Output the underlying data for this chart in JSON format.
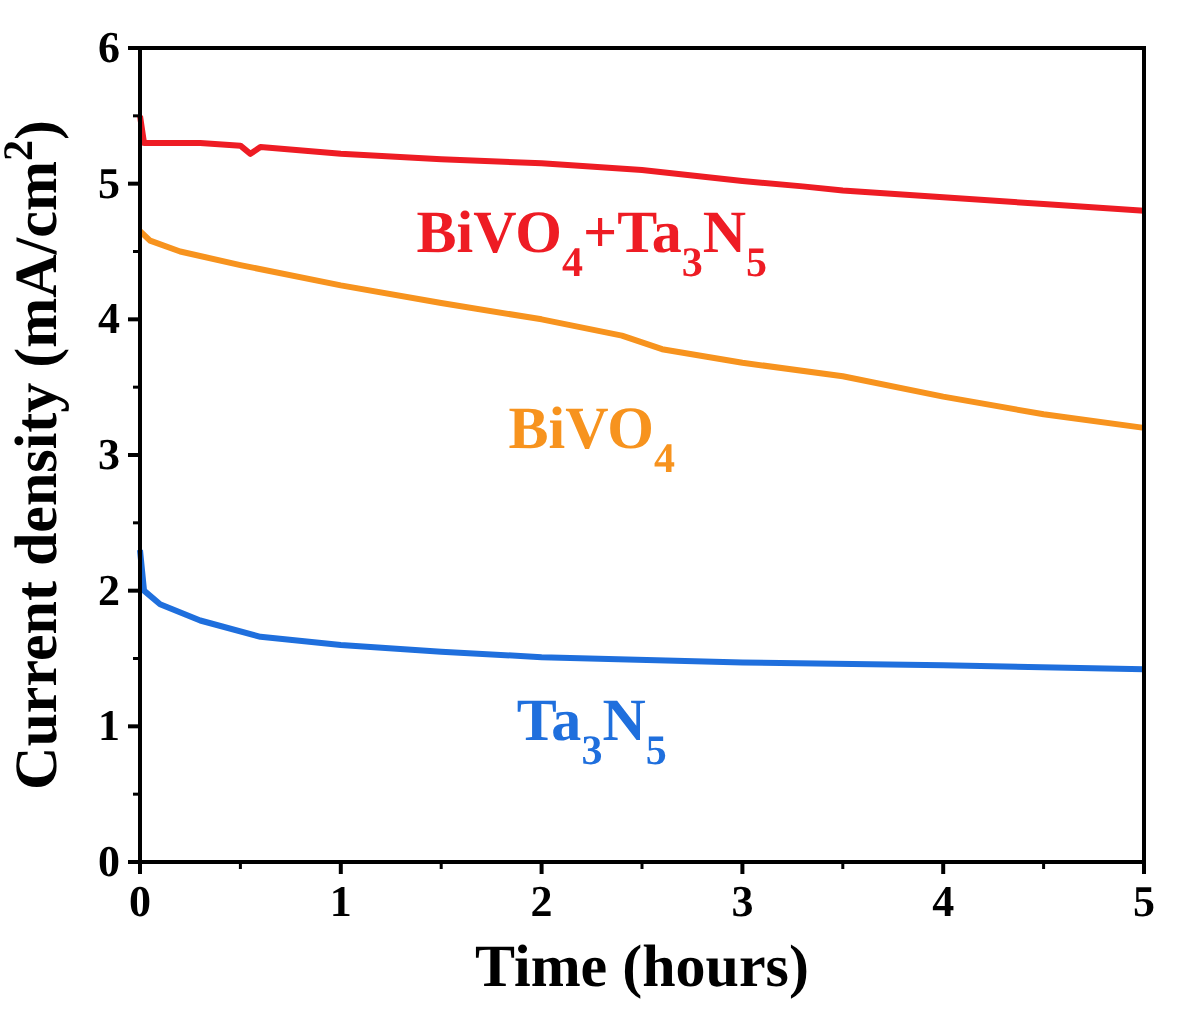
{
  "chart_data": {
    "type": "line",
    "xlabel": "Time (hours)",
    "ylabel": "Current density (mA/cm$^{2}$)",
    "xlim": [
      0,
      5
    ],
    "ylim": [
      0,
      6
    ],
    "xticks": [
      0,
      1,
      2,
      3,
      4,
      5
    ],
    "yticks": [
      0,
      1,
      2,
      3,
      4,
      5,
      6
    ],
    "grid": false,
    "marker": "none",
    "line_style": "solid",
    "series": [
      {
        "name": "BiVO$_{4}$+Ta$_{3}$N$_{5}$",
        "color": "#ee1c24",
        "x": [
          0,
          0.02,
          0.3,
          0.5,
          0.55,
          0.6,
          1,
          1.5,
          2,
          2.5,
          3,
          3.3,
          3.5,
          4,
          4.5,
          5
        ],
        "values": [
          5.5,
          5.3,
          5.3,
          5.28,
          5.22,
          5.27,
          5.22,
          5.18,
          5.15,
          5.1,
          5.02,
          4.98,
          4.95,
          4.9,
          4.85,
          4.8
        ]
      },
      {
        "name": "BiVO$_{4}$",
        "color": "#f7931e",
        "x": [
          0,
          0.05,
          0.2,
          0.5,
          1,
          1.5,
          2,
          2.4,
          2.6,
          3,
          3.5,
          4,
          4.5,
          5
        ],
        "values": [
          4.65,
          4.58,
          4.5,
          4.4,
          4.25,
          4.12,
          4.0,
          3.88,
          3.78,
          3.68,
          3.58,
          3.43,
          3.3,
          3.2
        ]
      },
      {
        "name": "Ta$_{3}$N$_{5}$",
        "color": "#1f6fdd",
        "x": [
          0,
          0.02,
          0.1,
          0.3,
          0.6,
          1,
          1.5,
          2,
          3,
          4,
          5
        ],
        "values": [
          2.3,
          2.0,
          1.9,
          1.78,
          1.66,
          1.6,
          1.55,
          1.51,
          1.47,
          1.45,
          1.42
        ]
      }
    ]
  }
}
